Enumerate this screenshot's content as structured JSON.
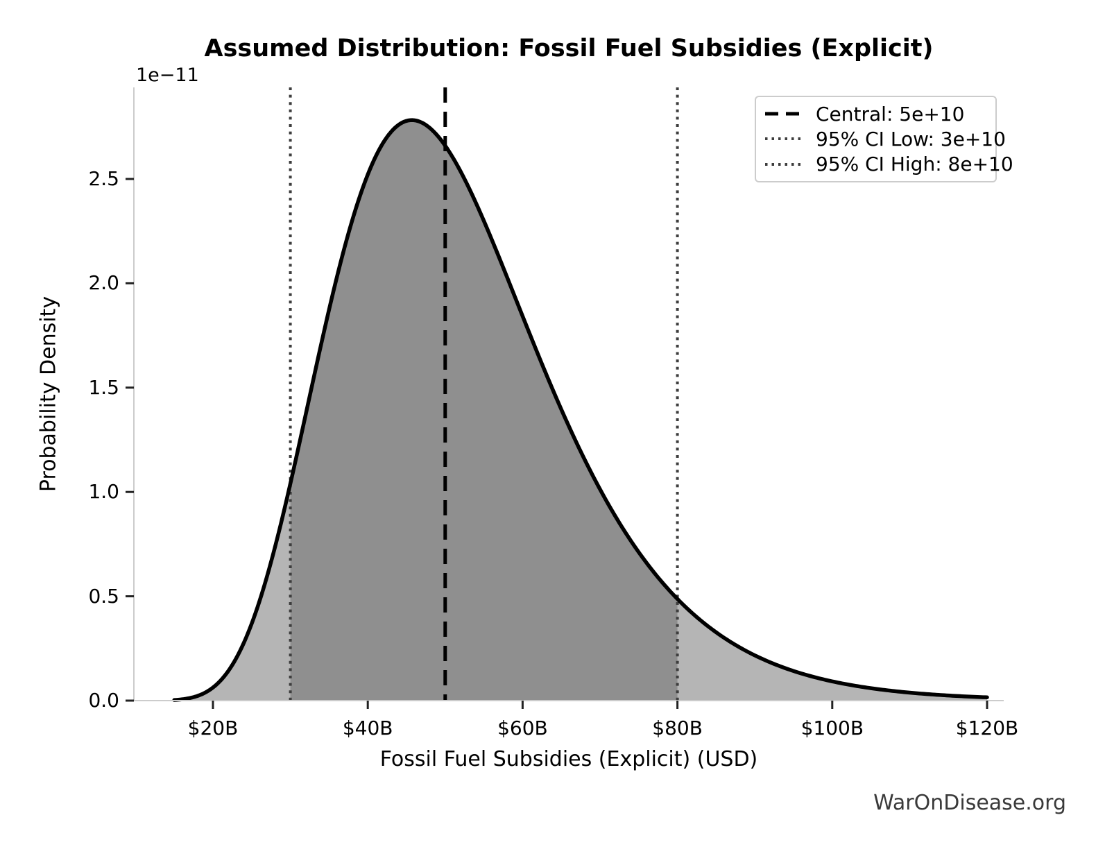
{
  "watermark": "WarOnDisease.org",
  "chart_data": {
    "type": "area",
    "title": "Assumed Distribution: Fossil Fuel Subsidies (Explicit)",
    "xlabel": "Fossil Fuel Subsidies (Explicit) (USD)",
    "ylabel": "Probability Density",
    "y_offset_label": "1e−11",
    "x_tick_labels": [
      "$20B",
      "$40B",
      "$60B",
      "$80B",
      "$100B",
      "$120B"
    ],
    "x_tick_values_billion": [
      20,
      40,
      60,
      80,
      100,
      120
    ],
    "y_tick_labels": [
      "0.0",
      "0.5",
      "1.0",
      "1.5",
      "2.0",
      "2.5"
    ],
    "y_tick_values_1e11": [
      0,
      0.5,
      1.0,
      1.5,
      2.0,
      2.5
    ],
    "xlim_billion": [
      9.8,
      122.2
    ],
    "ylim_1e11": [
      0,
      2.94
    ],
    "grid": false,
    "legend_position": "upper right",
    "central_value_billion": 50,
    "ci_low_billion": 30,
    "ci_high_billion": 80,
    "distribution": {
      "family": "lognormal",
      "median_billion": 50,
      "sigma_log": 0.3,
      "curve_x_range_billion": [
        15,
        120
      ],
      "peak_x_billion": 45.7,
      "peak_density_1e11": 2.78
    },
    "curve_points_x_billion_density_1e11": [
      [
        15,
        0.003
      ],
      [
        20,
        0.063
      ],
      [
        25,
        0.369
      ],
      [
        30,
        1.04
      ],
      [
        35,
        1.874
      ],
      [
        40,
        2.521
      ],
      [
        45,
        2.778
      ],
      [
        50,
        2.66
      ],
      [
        55,
        2.299
      ],
      [
        60,
        1.843
      ],
      [
        65,
        1.396
      ],
      [
        70,
        1.013
      ],
      [
        75,
        0.711
      ],
      [
        80,
        0.487
      ],
      [
        85,
        0.327
      ],
      [
        90,
        0.217
      ],
      [
        95,
        0.142
      ],
      [
        100,
        0.092
      ],
      [
        105,
        0.059
      ],
      [
        110,
        0.038
      ],
      [
        115,
        0.025
      ],
      [
        120,
        0.016
      ]
    ],
    "legend": [
      {
        "label": "Central: 5e+10",
        "style": "dashed",
        "color": "#000000"
      },
      {
        "label": "95% CI Low: 3e+10",
        "style": "dotted",
        "color": "#3d3d3d"
      },
      {
        "label": "95% CI High: 8e+10",
        "style": "dotted",
        "color": "#3d3d3d"
      }
    ],
    "colors": {
      "curve": "#000000",
      "fill_light": "#b5b5b5",
      "fill_dark": "#8f8f8f",
      "spine": "#cccccc",
      "tick": "#222222",
      "watermark": "#3a3a3a"
    }
  }
}
